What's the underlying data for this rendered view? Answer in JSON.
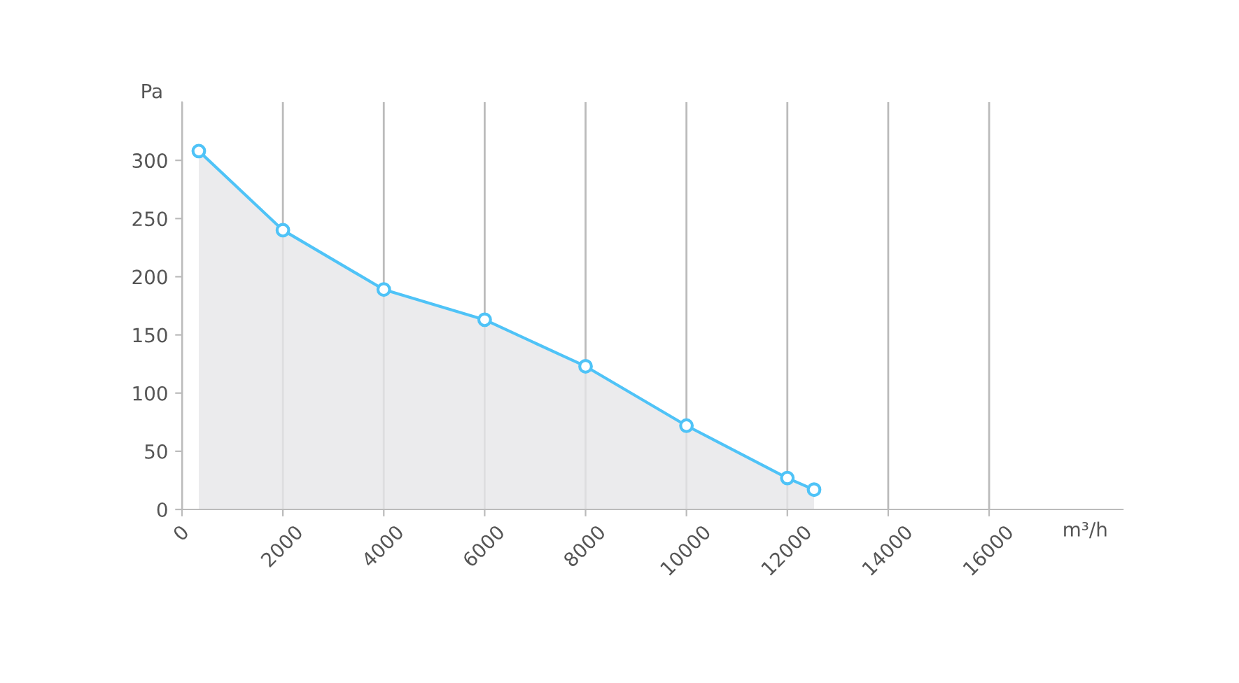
{
  "chart_data": {
    "type": "area",
    "xlabel": "m³/h",
    "ylabel": "Pa",
    "x": [
      333,
      2000,
      4000,
      6000,
      8000,
      10000,
      12000,
      12530
    ],
    "series": [
      {
        "color": "#4fc3f7",
        "values": [
          308,
          240,
          189,
          163,
          123,
          72,
          27,
          17
        ]
      }
    ],
    "xlim": [
      0,
      18650
    ],
    "xticks": [
      0,
      2000,
      4000,
      6000,
      8000,
      10000,
      12000,
      14000,
      16000
    ],
    "ylim": [
      0,
      350
    ],
    "yticks": [
      0,
      50,
      100,
      150,
      200,
      250,
      300
    ],
    "grid": "x",
    "marker": "circle",
    "line_style": "solid",
    "legend": false
  }
}
